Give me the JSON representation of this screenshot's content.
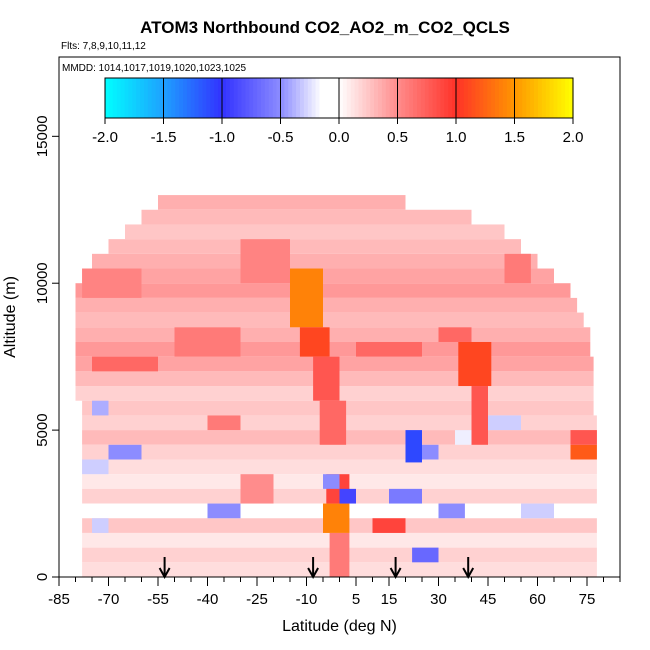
{
  "chart_data": {
    "type": "heatmap",
    "title": "ATOM3 Northbound CO2_AO2_m_CO2_QCLS",
    "subtitle": "Flts: 7,8,9,10,11,12",
    "annotation": "MMDD: 1014,1017,1019,1020,1023,1025",
    "xlabel": "Latitude (deg N)",
    "ylabel": "Altitude (m)",
    "xlim": [
      -85,
      85
    ],
    "ylim": [
      0,
      17700
    ],
    "x_ticks": [
      -85,
      -70,
      -55,
      -40,
      -25,
      -10,
      5,
      15,
      30,
      45,
      60,
      75
    ],
    "y_ticks": [
      0,
      5000,
      10000,
      15000
    ],
    "colorbar": {
      "min": -2.0,
      "max": 2.0,
      "ticks": [
        "-2.0",
        "-1.5",
        "-1.0",
        "-0.5",
        "0.0",
        "0.5",
        "1.0",
        "1.5",
        "2.0"
      ],
      "colors": [
        "#00ffff",
        "#1e90ff",
        "#3333ff",
        "#ffffff",
        "#ff3333",
        "#ffa500",
        "#ffff00"
      ]
    },
    "arrows_latitude": [
      -53,
      -8,
      17,
      39
    ],
    "cells": [
      {
        "lat": [
          -55,
          20
        ],
        "alt": [
          12500,
          13000
        ],
        "v": 0.35
      },
      {
        "lat": [
          -60,
          40
        ],
        "alt": [
          12000,
          12500
        ],
        "v": 0.3
      },
      {
        "lat": [
          -65,
          50
        ],
        "alt": [
          11500,
          12000
        ],
        "v": 0.25
      },
      {
        "lat": [
          -70,
          55
        ],
        "alt": [
          11000,
          11500
        ],
        "v": 0.3
      },
      {
        "lat": [
          -75,
          60
        ],
        "alt": [
          10500,
          11000
        ],
        "v": 0.35
      },
      {
        "lat": [
          -78,
          65
        ],
        "alt": [
          10000,
          10500
        ],
        "v": 0.4
      },
      {
        "lat": [
          -80,
          70
        ],
        "alt": [
          9500,
          10000
        ],
        "v": 0.45
      },
      {
        "lat": [
          -80,
          72
        ],
        "alt": [
          9000,
          9500
        ],
        "v": 0.35
      },
      {
        "lat": [
          -80,
          74
        ],
        "alt": [
          8500,
          9000
        ],
        "v": 0.3
      },
      {
        "lat": [
          -80,
          76
        ],
        "alt": [
          8000,
          8500
        ],
        "v": 0.35
      },
      {
        "lat": [
          -80,
          76
        ],
        "alt": [
          7500,
          8000
        ],
        "v": 0.45
      },
      {
        "lat": [
          -80,
          77
        ],
        "alt": [
          7000,
          7500
        ],
        "v": 0.4
      },
      {
        "lat": [
          -80,
          77
        ],
        "alt": [
          6500,
          7000
        ],
        "v": 0.3
      },
      {
        "lat": [
          -80,
          77
        ],
        "alt": [
          6000,
          6500
        ],
        "v": 0.2
      },
      {
        "lat": [
          -78,
          77
        ],
        "alt": [
          5500,
          6000
        ],
        "v": 0.25
      },
      {
        "lat": [
          -78,
          78
        ],
        "alt": [
          5000,
          5500
        ],
        "v": 0.2
      },
      {
        "lat": [
          -78,
          78
        ],
        "alt": [
          4500,
          5000
        ],
        "v": 0.3
      },
      {
        "lat": [
          -78,
          78
        ],
        "alt": [
          4000,
          4500
        ],
        "v": 0.2
      },
      {
        "lat": [
          -78,
          78
        ],
        "alt": [
          3500,
          4000
        ],
        "v": 0.15
      },
      {
        "lat": [
          -78,
          78
        ],
        "alt": [
          3000,
          3500
        ],
        "v": 0.1
      },
      {
        "lat": [
          -78,
          78
        ],
        "alt": [
          2500,
          3000
        ],
        "v": 0.2
      },
      {
        "lat": [
          -78,
          78
        ],
        "alt": [
          2000,
          2500
        ],
        "v": 0.0
      },
      {
        "lat": [
          -78,
          78
        ],
        "alt": [
          1500,
          2000
        ],
        "v": 0.25
      },
      {
        "lat": [
          -78,
          78
        ],
        "alt": [
          1000,
          1500
        ],
        "v": 0.1
      },
      {
        "lat": [
          -78,
          78
        ],
        "alt": [
          500,
          1000
        ],
        "v": 0.2
      },
      {
        "lat": [
          -78,
          78
        ],
        "alt": [
          0,
          500
        ],
        "v": 0.15
      },
      {
        "lat": [
          -78,
          -60
        ],
        "alt": [
          9500,
          10500
        ],
        "v": 0.55
      },
      {
        "lat": [
          -75,
          -55
        ],
        "alt": [
          7000,
          7500
        ],
        "v": 0.7
      },
      {
        "lat": [
          -50,
          -30
        ],
        "alt": [
          7500,
          8500
        ],
        "v": 0.6
      },
      {
        "lat": [
          -30,
          -15
        ],
        "alt": [
          10000,
          11500
        ],
        "v": 0.55
      },
      {
        "lat": [
          -15,
          -5
        ],
        "alt": [
          8500,
          10500
        ],
        "v": 1.4
      },
      {
        "lat": [
          -12,
          -3
        ],
        "alt": [
          7500,
          8500
        ],
        "v": 1.1
      },
      {
        "lat": [
          -8,
          0
        ],
        "alt": [
          6000,
          7500
        ],
        "v": 0.8
      },
      {
        "lat": [
          -6,
          2
        ],
        "alt": [
          4500,
          6000
        ],
        "v": 0.7
      },
      {
        "lat": [
          -5,
          3
        ],
        "alt": [
          1500,
          2500
        ],
        "v": 1.4
      },
      {
        "lat": [
          -4,
          3
        ],
        "alt": [
          2500,
          3500
        ],
        "v": 0.9
      },
      {
        "lat": [
          -3,
          3
        ],
        "alt": [
          0,
          1500
        ],
        "v": 0.6
      },
      {
        "lat": [
          5,
          25
        ],
        "alt": [
          7500,
          8000
        ],
        "v": 0.7
      },
      {
        "lat": [
          10,
          20
        ],
        "alt": [
          1500,
          2000
        ],
        "v": 0.9
      },
      {
        "lat": [
          36,
          46
        ],
        "alt": [
          6500,
          8000
        ],
        "v": 1.1
      },
      {
        "lat": [
          30,
          40
        ],
        "alt": [
          8000,
          8500
        ],
        "v": 0.7
      },
      {
        "lat": [
          40,
          45
        ],
        "alt": [
          4500,
          6500
        ],
        "v": 0.8
      },
      {
        "lat": [
          50,
          58
        ],
        "alt": [
          10000,
          11000
        ],
        "v": 0.6
      },
      {
        "lat": [
          70,
          78
        ],
        "alt": [
          4000,
          4500
        ],
        "v": 1.2
      },
      {
        "lat": [
          70,
          78
        ],
        "alt": [
          4500,
          5000
        ],
        "v": 0.8
      },
      {
        "lat": [
          -40,
          -30
        ],
        "alt": [
          5000,
          5500
        ],
        "v": 0.6
      },
      {
        "lat": [
          -30,
          -20
        ],
        "alt": [
          2500,
          3500
        ],
        "v": 0.5
      },
      {
        "lat": [
          20,
          25
        ],
        "alt": [
          3900,
          5000
        ],
        "v": -1.1
      },
      {
        "lat": [
          25,
          30
        ],
        "alt": [
          4000,
          4500
        ],
        "v": -0.5
      },
      {
        "lat": [
          0,
          5
        ],
        "alt": [
          2500,
          3000
        ],
        "v": -0.9
      },
      {
        "lat": [
          -5,
          0
        ],
        "alt": [
          3000,
          3500
        ],
        "v": -0.5
      },
      {
        "lat": [
          15,
          25
        ],
        "alt": [
          2500,
          3000
        ],
        "v": -0.6
      },
      {
        "lat": [
          -40,
          -30
        ],
        "alt": [
          2000,
          2500
        ],
        "v": -0.5
      },
      {
        "lat": [
          30,
          38
        ],
        "alt": [
          2000,
          2500
        ],
        "v": -0.5
      },
      {
        "lat": [
          22,
          30
        ],
        "alt": [
          500,
          1000
        ],
        "v": -0.7
      },
      {
        "lat": [
          -70,
          -60
        ],
        "alt": [
          4000,
          4500
        ],
        "v": -0.5
      },
      {
        "lat": [
          -78,
          -70
        ],
        "alt": [
          3500,
          4000
        ],
        "v": -0.3
      },
      {
        "lat": [
          -75,
          -70
        ],
        "alt": [
          5500,
          6000
        ],
        "v": -0.4
      },
      {
        "lat": [
          -75,
          -70
        ],
        "alt": [
          1500,
          2000
        ],
        "v": -0.3
      },
      {
        "lat": [
          55,
          65
        ],
        "alt": [
          2000,
          2500
        ],
        "v": -0.3
      },
      {
        "lat": [
          45,
          55
        ],
        "alt": [
          5000,
          5500
        ],
        "v": -0.3
      },
      {
        "lat": [
          35,
          40
        ],
        "alt": [
          4500,
          5000
        ],
        "v": -0.2
      }
    ]
  }
}
